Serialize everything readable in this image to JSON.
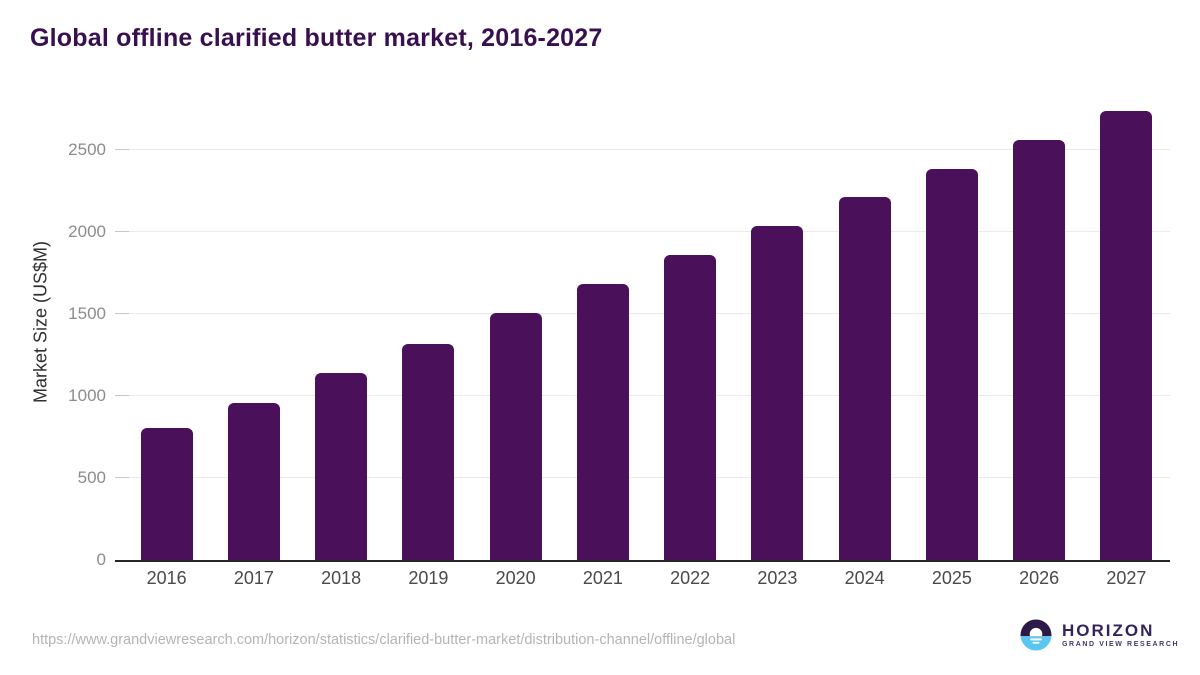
{
  "chart_data": {
    "type": "bar",
    "title": "Global offline clarified butter market, 2016-2027",
    "ylabel": "Market Size (US$M)",
    "xlabel": "",
    "categories": [
      "2016",
      "2017",
      "2018",
      "2019",
      "2020",
      "2021",
      "2022",
      "2023",
      "2024",
      "2025",
      "2026",
      "2027"
    ],
    "values": [
      805,
      955,
      1140,
      1320,
      1505,
      1685,
      1860,
      2035,
      2215,
      2385,
      2560,
      2735
    ],
    "yticks": [
      0,
      500,
      1000,
      1500,
      2000,
      2500
    ],
    "ylim": [
      0,
      2800
    ],
    "grid": true,
    "legend": "none",
    "bar_color": "#4a115a"
  },
  "footer": {
    "source_url": "https://www.grandviewresearch.com/horizon/statistics/clarified-butter-market/distribution-channel/offline/global",
    "logo": {
      "name": "HORIZON",
      "subtitle": "GRAND VIEW RESEARCH",
      "icon": "horizon-sun-circle-icon",
      "purple": "#2e1a47",
      "blue": "#5bc6f0"
    }
  },
  "colors": {
    "title": "#38104f",
    "bar": "#4a115a",
    "gridline": "#ebebeb",
    "axis_line": "#262626",
    "y_tick_text": "#8c8c8c",
    "x_tick_text": "#4a4a4a",
    "url_text": "#b4b4b4"
  }
}
